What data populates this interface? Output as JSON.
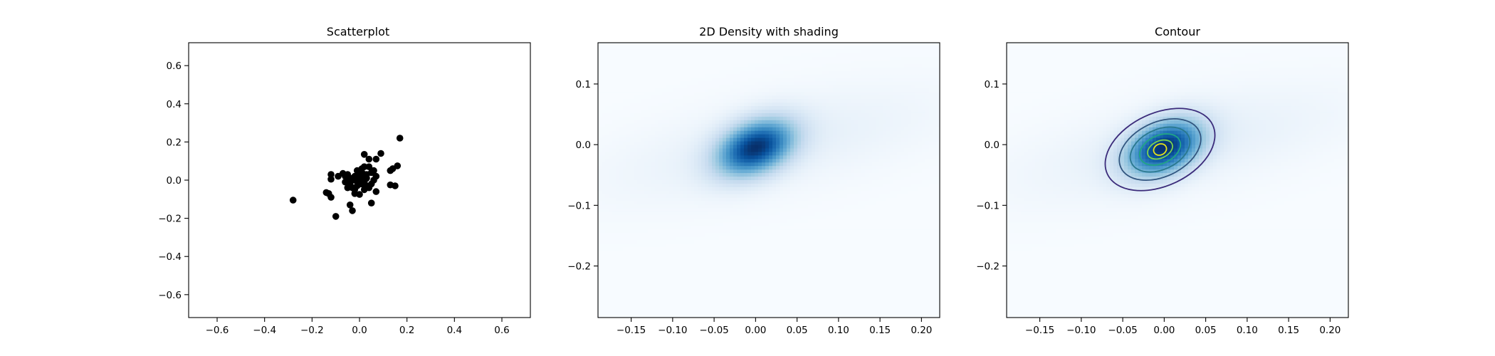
{
  "chart_data": [
    {
      "type": "scatter",
      "title": "Scatterplot",
      "xlabel": "",
      "ylabel": "",
      "xlim": [
        -0.72,
        0.72
      ],
      "ylim": [
        -0.72,
        0.72
      ],
      "xticks": [
        -0.6,
        -0.4,
        -0.2,
        0.0,
        0.2,
        0.4,
        0.6
      ],
      "yticks": [
        -0.6,
        -0.4,
        -0.2,
        0.0,
        0.2,
        0.4,
        0.6
      ],
      "xtick_labels": [
        "−0.6",
        "−0.4",
        "−0.2",
        "0.0",
        "0.2",
        "0.4",
        "0.6"
      ],
      "ytick_labels": [
        "−0.6",
        "−0.4",
        "−0.2",
        "0.0",
        "0.2",
        "0.4",
        "0.6"
      ],
      "marker_color": "#000000",
      "grid": false,
      "points": [
        [
          -0.28,
          -0.105
        ],
        [
          -0.1,
          -0.19
        ],
        [
          -0.03,
          -0.16
        ],
        [
          -0.04,
          -0.13
        ],
        [
          0.05,
          -0.12
        ],
        [
          -0.12,
          -0.09
        ],
        [
          -0.13,
          -0.07
        ],
        [
          -0.14,
          -0.065
        ],
        [
          0.0,
          -0.075
        ],
        [
          -0.02,
          -0.07
        ],
        [
          0.07,
          -0.06
        ],
        [
          0.13,
          -0.025
        ],
        [
          0.15,
          -0.03
        ],
        [
          0.16,
          0.075
        ],
        [
          0.13,
          0.05
        ],
        [
          0.14,
          0.06
        ],
        [
          0.17,
          0.22
        ],
        [
          0.09,
          0.14
        ],
        [
          0.02,
          0.135
        ],
        [
          0.04,
          0.11
        ],
        [
          0.07,
          0.11
        ],
        [
          -0.12,
          0.03
        ],
        [
          -0.12,
          0.005
        ],
        [
          -0.09,
          0.02
        ],
        [
          -0.07,
          0.035
        ],
        [
          -0.05,
          0.03
        ],
        [
          -0.06,
          -0.01
        ],
        [
          -0.04,
          -0.02
        ],
        [
          -0.03,
          0.01
        ],
        [
          -0.02,
          0.02
        ],
        [
          -0.01,
          0.05
        ],
        [
          0.0,
          0.02
        ],
        [
          0.01,
          0.0
        ],
        [
          0.02,
          -0.01
        ],
        [
          0.03,
          0.03
        ],
        [
          0.04,
          0.07
        ],
        [
          0.05,
          0.04
        ],
        [
          0.01,
          0.06
        ],
        [
          0.03,
          -0.03
        ],
        [
          0.06,
          0.0
        ],
        [
          0.07,
          0.02
        ],
        [
          -0.01,
          -0.03
        ],
        [
          -0.03,
          -0.04
        ],
        [
          0.02,
          -0.05
        ],
        [
          -0.05,
          -0.04
        ],
        [
          0.0,
          -0.02
        ],
        [
          0.02,
          0.03
        ],
        [
          -0.02,
          0.0
        ],
        [
          0.01,
          0.04
        ],
        [
          0.05,
          -0.02
        ],
        [
          -0.04,
          0.0
        ],
        [
          0.03,
          0.01
        ],
        [
          0.04,
          -0.04
        ],
        [
          -0.01,
          0.01
        ],
        [
          0.0,
          0.03
        ],
        [
          0.02,
          0.07
        ],
        [
          -0.02,
          -0.05
        ],
        [
          0.06,
          0.05
        ],
        [
          -0.06,
          0.02
        ],
        [
          0.01,
          -0.02
        ]
      ]
    },
    {
      "type": "heatmap",
      "title": "2D Density with shading",
      "xlabel": "",
      "ylabel": "",
      "xlim": [
        -0.19,
        0.222
      ],
      "ylim": [
        -0.285,
        0.168
      ],
      "xticks": [
        -0.15,
        -0.1,
        -0.05,
        0.0,
        0.05,
        0.1,
        0.15,
        0.2
      ],
      "yticks": [
        -0.2,
        -0.1,
        0.0,
        0.1
      ],
      "xtick_labels": [
        "−0.15",
        "−0.10",
        "−0.05",
        "0.00",
        "0.05",
        "0.10",
        "0.15",
        "0.20"
      ],
      "ytick_labels": [
        "−0.2",
        "−0.1",
        "0.0",
        "0.1"
      ],
      "colormap": [
        "#f7fbff",
        "#deebf7",
        "#c6dbef",
        "#9ecae1",
        "#6baed6",
        "#4292c6",
        "#2171b5",
        "#08519c",
        "#08306b"
      ],
      "density_components": [
        {
          "cx": 0.0,
          "cy": -0.005,
          "sx": 0.03,
          "sy": 0.03,
          "rho": 0.35,
          "weight": 1.0
        },
        {
          "cx": 0.02,
          "cy": 0.0,
          "sx": 0.13,
          "sy": 0.06,
          "rho": 0.6,
          "weight": 0.06
        }
      ]
    },
    {
      "type": "contour",
      "title": "Contour",
      "xlabel": "",
      "ylabel": "",
      "xlim": [
        -0.19,
        0.222
      ],
      "ylim": [
        -0.285,
        0.168
      ],
      "xticks": [
        -0.15,
        -0.1,
        -0.05,
        0.0,
        0.05,
        0.1,
        0.15,
        0.2
      ],
      "yticks": [
        -0.2,
        -0.1,
        0.0,
        0.1
      ],
      "xtick_labels": [
        "−0.15",
        "−0.10",
        "−0.05",
        "0.00",
        "0.05",
        "0.10",
        "0.15",
        "0.20"
      ],
      "ytick_labels": [
        "−0.2",
        "−0.1",
        "0.0",
        "0.1"
      ],
      "colormap": [
        "#f7fbff",
        "#deebf7",
        "#c6dbef",
        "#9ecae1",
        "#6baed6",
        "#4292c6",
        "#2171b5",
        "#08519c",
        "#08306b"
      ],
      "density_components": [
        {
          "cx": 0.0,
          "cy": -0.005,
          "sx": 0.03,
          "sy": 0.03,
          "rho": 0.35,
          "weight": 1.0
        },
        {
          "cx": 0.02,
          "cy": 0.0,
          "sx": 0.13,
          "sy": 0.06,
          "rho": 0.6,
          "weight": 0.06
        }
      ],
      "contour_levels": [
        {
          "rx": 0.07,
          "ry": 0.06,
          "color": "#3b2b7a"
        },
        {
          "rx": 0.052,
          "ry": 0.045,
          "color": "#31557f"
        },
        {
          "rx": 0.038,
          "ry": 0.033,
          "color": "#2a788e"
        },
        {
          "rx": 0.026,
          "ry": 0.023,
          "color": "#21a585"
        },
        {
          "rx": 0.016,
          "ry": 0.014,
          "color": "#7ad151"
        },
        {
          "rx": 0.008,
          "ry": 0.009,
          "color": "#e8e419"
        }
      ],
      "contour_center": [
        -0.005,
        -0.008
      ],
      "contour_rotation_deg": 25
    }
  ]
}
